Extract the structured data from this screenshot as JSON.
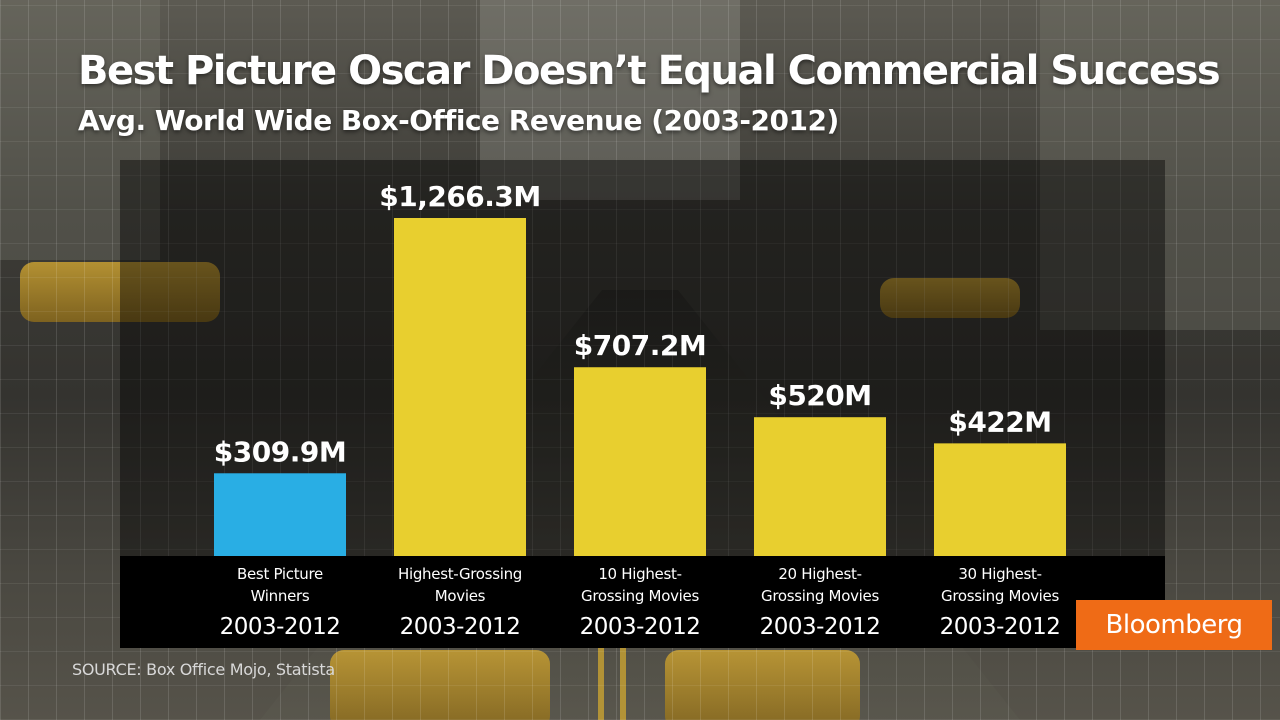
{
  "header": {
    "title": "Best Picture Oscar Doesn’t Equal Commercial Success",
    "subtitle": "Avg. World Wide Box-Office Revenue (2003-2012)"
  },
  "chart_data": {
    "type": "bar",
    "categories": [
      {
        "line1": "Best Picture",
        "line2": "Winners",
        "period": "2003-2012"
      },
      {
        "line1": "Highest-Grossing",
        "line2": "Movies",
        "period": "2003-2012"
      },
      {
        "line1": "10 Highest-",
        "line2": "Grossing Movies",
        "period": "2003-2012"
      },
      {
        "line1": "20 Highest-",
        "line2": "Grossing Movies",
        "period": "2003-2012"
      },
      {
        "line1": "30 Highest-",
        "line2": "Grossing Movies",
        "period": "2003-2012"
      }
    ],
    "values": [
      309.9,
      1266.3,
      707.2,
      520,
      422
    ],
    "data_labels": [
      "$309.9M",
      "$1,266.3M",
      "$707.2M",
      "$520M",
      "$422M"
    ],
    "unit": "$M",
    "ylim": [
      0,
      1266.3
    ],
    "grid": false,
    "colors": [
      "#29aee4",
      "#e8cf2f",
      "#e8cf2f",
      "#e8cf2f",
      "#e8cf2f"
    ]
  },
  "footer": {
    "source": "SOURCE:  Box Office Mojo, Statista",
    "logo": "Bloomberg"
  },
  "colors": {
    "highlight_bar": "#29aee4",
    "bar": "#e8cf2f",
    "logo_bg": "#ef6b16"
  }
}
